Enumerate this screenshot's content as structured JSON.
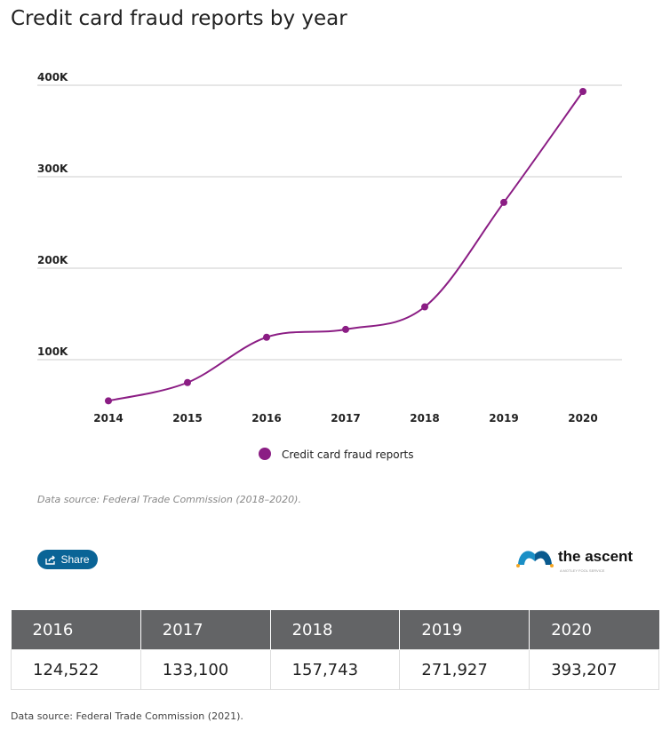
{
  "title": "Credit card fraud reports by year",
  "chart_data": {
    "type": "line",
    "categories": [
      "2014",
      "2015",
      "2016",
      "2017",
      "2018",
      "2019",
      "2020"
    ],
    "series": [
      {
        "name": "Credit card fraud reports",
        "values": [
          55000,
          75000,
          124522,
          133100,
          157743,
          271927,
          393207
        ]
      }
    ],
    "yticks": [
      100000,
      200000,
      300000,
      400000
    ],
    "ytick_labels": [
      "100K",
      "200K",
      "300K",
      "400K"
    ],
    "ylim": [
      0,
      400000
    ],
    "grid": true,
    "legend": "bottom",
    "color": "#8b1d84"
  },
  "source_note": "Data source: Federal Trade Commission (2018–2020).",
  "share_label": "Share",
  "logo": {
    "name": "the ascent",
    "tagline": "A MOTLEY FOOL SERVICE"
  },
  "table": {
    "headers": [
      "2016",
      "2017",
      "2018",
      "2019",
      "2020"
    ],
    "rows": [
      [
        "124,522",
        "133,100",
        "157,743",
        "271,927",
        "393,207"
      ]
    ]
  },
  "table_source": "Data source: Federal Trade Commission (2021)."
}
